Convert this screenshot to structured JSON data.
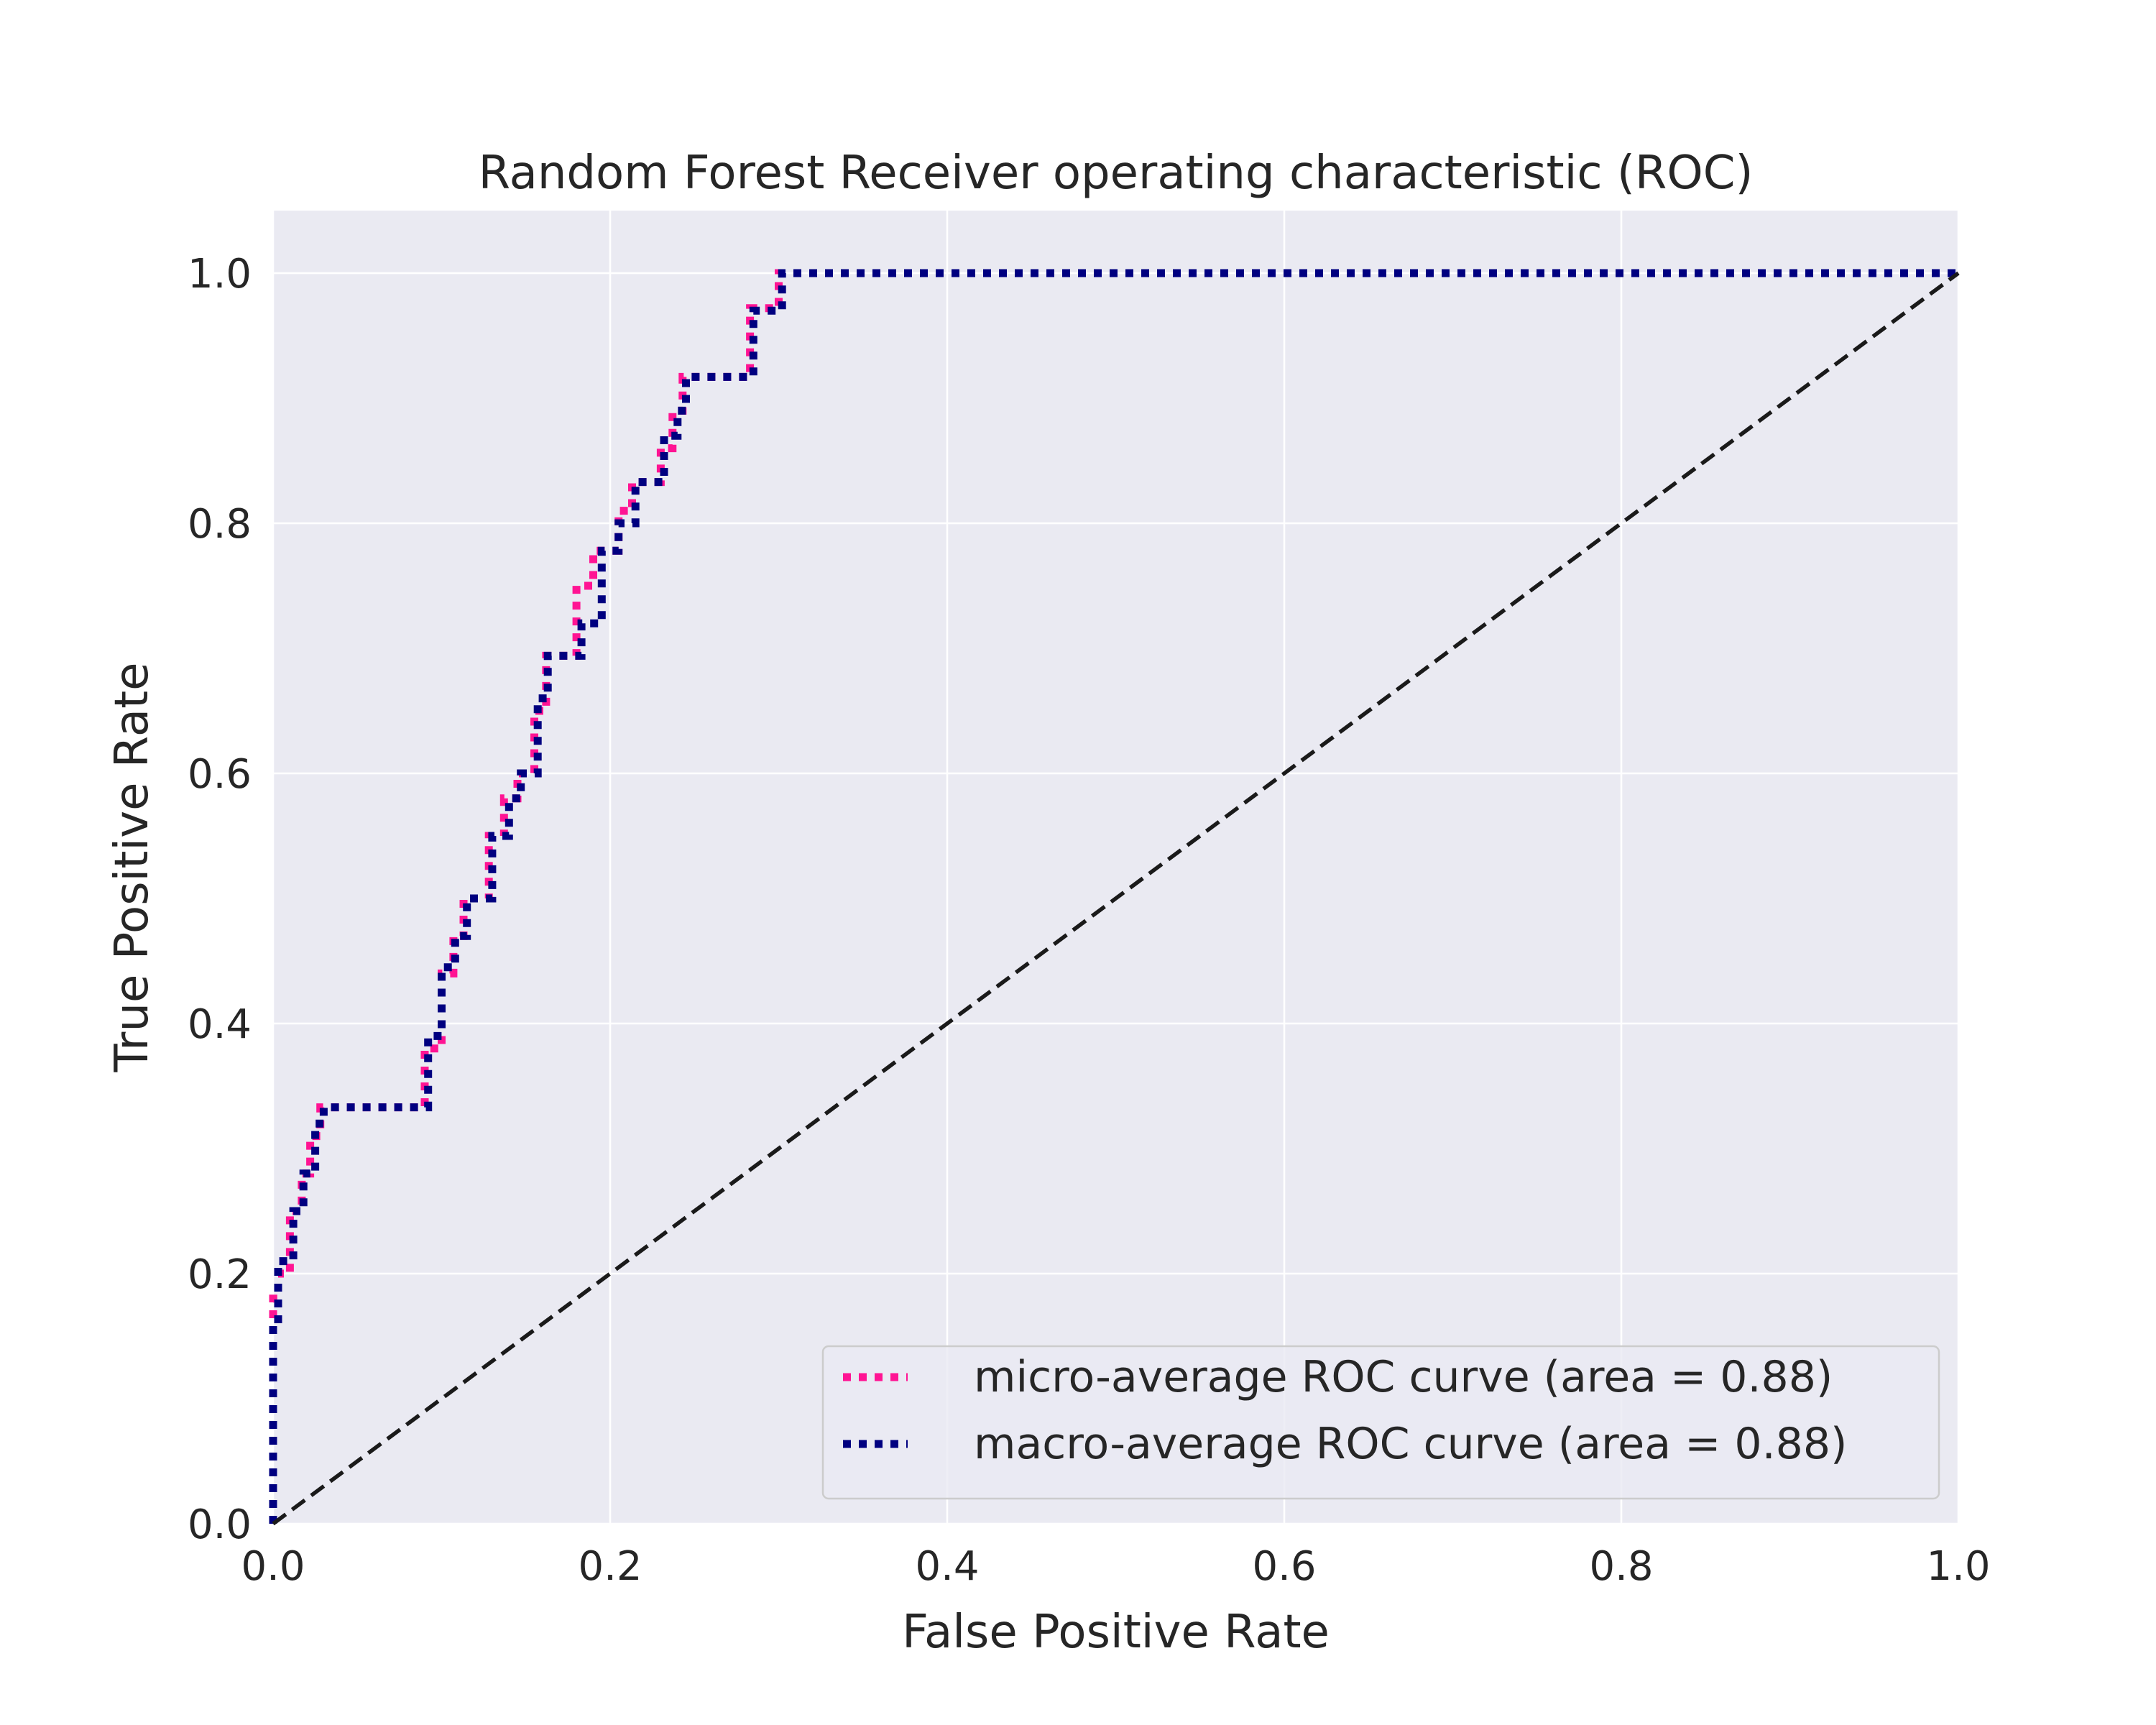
{
  "chart_data": {
    "type": "line",
    "title": "Random Forest Receiver operating characteristic (ROC)",
    "xlabel": "False Positive Rate",
    "ylabel": "True Positive Rate",
    "xlim": [
      0.0,
      1.0
    ],
    "ylim": [
      0.0,
      1.05
    ],
    "xticks": [
      "0.0",
      "0.2",
      "0.4",
      "0.6",
      "0.8",
      "1.0"
    ],
    "yticks": [
      "0.0",
      "0.2",
      "0.4",
      "0.6",
      "0.8",
      "1.0"
    ],
    "grid": true,
    "legend_position": "lower-right",
    "colors": {
      "plot_background": "#eaeaf2",
      "grid": "#ffffff",
      "micro": "#ff1493",
      "macro": "#000080",
      "diagonal": "#1a1a1a"
    },
    "series": [
      {
        "name": "micro-average ROC curve (area = 0.88)",
        "style": "dotted",
        "x": [
          0.0,
          0.0,
          0.003,
          0.003,
          0.01,
          0.01,
          0.017,
          0.017,
          0.022,
          0.022,
          0.028,
          0.028,
          0.09,
          0.09,
          0.1,
          0.1,
          0.107,
          0.107,
          0.113,
          0.113,
          0.128,
          0.128,
          0.137,
          0.137,
          0.145,
          0.145,
          0.155,
          0.155,
          0.162,
          0.162,
          0.167,
          0.167,
          0.18,
          0.18,
          0.19,
          0.19,
          0.205,
          0.205,
          0.213,
          0.213,
          0.23,
          0.23,
          0.237,
          0.237,
          0.243,
          0.243,
          0.283,
          0.283,
          0.3,
          0.3,
          1.0
        ],
        "y": [
          0.0,
          0.18,
          0.18,
          0.2,
          0.2,
          0.25,
          0.25,
          0.28,
          0.28,
          0.31,
          0.31,
          0.333,
          0.333,
          0.38,
          0.38,
          0.44,
          0.44,
          0.47,
          0.47,
          0.5,
          0.5,
          0.55,
          0.55,
          0.58,
          0.58,
          0.6,
          0.6,
          0.65,
          0.65,
          0.694,
          0.694,
          0.694,
          0.694,
          0.75,
          0.75,
          0.778,
          0.778,
          0.81,
          0.81,
          0.833,
          0.833,
          0.86,
          0.86,
          0.89,
          0.89,
          0.917,
          0.917,
          0.972,
          0.972,
          1.0,
          1.0
        ]
      },
      {
        "name": "macro-average ROC curve (area = 0.88)",
        "style": "dotted",
        "x": [
          0.0,
          0.0,
          0.003,
          0.003,
          0.012,
          0.012,
          0.018,
          0.018,
          0.025,
          0.025,
          0.03,
          0.03,
          0.092,
          0.092,
          0.1,
          0.1,
          0.108,
          0.108,
          0.115,
          0.115,
          0.13,
          0.13,
          0.14,
          0.14,
          0.147,
          0.147,
          0.157,
          0.157,
          0.163,
          0.163,
          0.17,
          0.17,
          0.183,
          0.183,
          0.195,
          0.195,
          0.205,
          0.205,
          0.215,
          0.215,
          0.232,
          0.232,
          0.24,
          0.24,
          0.245,
          0.245,
          0.285,
          0.285,
          0.302,
          0.302,
          1.0
        ],
        "y": [
          0.0,
          0.16,
          0.16,
          0.21,
          0.21,
          0.25,
          0.25,
          0.28,
          0.28,
          0.32,
          0.32,
          0.333,
          0.333,
          0.39,
          0.39,
          0.445,
          0.445,
          0.47,
          0.47,
          0.5,
          0.5,
          0.55,
          0.55,
          0.58,
          0.58,
          0.6,
          0.6,
          0.66,
          0.66,
          0.694,
          0.694,
          0.694,
          0.694,
          0.72,
          0.72,
          0.778,
          0.778,
          0.8,
          0.8,
          0.833,
          0.833,
          0.87,
          0.87,
          0.89,
          0.89,
          0.917,
          0.917,
          0.97,
          0.97,
          1.0,
          1.0
        ]
      },
      {
        "style": "dashed",
        "x": [
          0.0,
          1.0
        ],
        "y": [
          0.0,
          1.0
        ]
      }
    ]
  }
}
